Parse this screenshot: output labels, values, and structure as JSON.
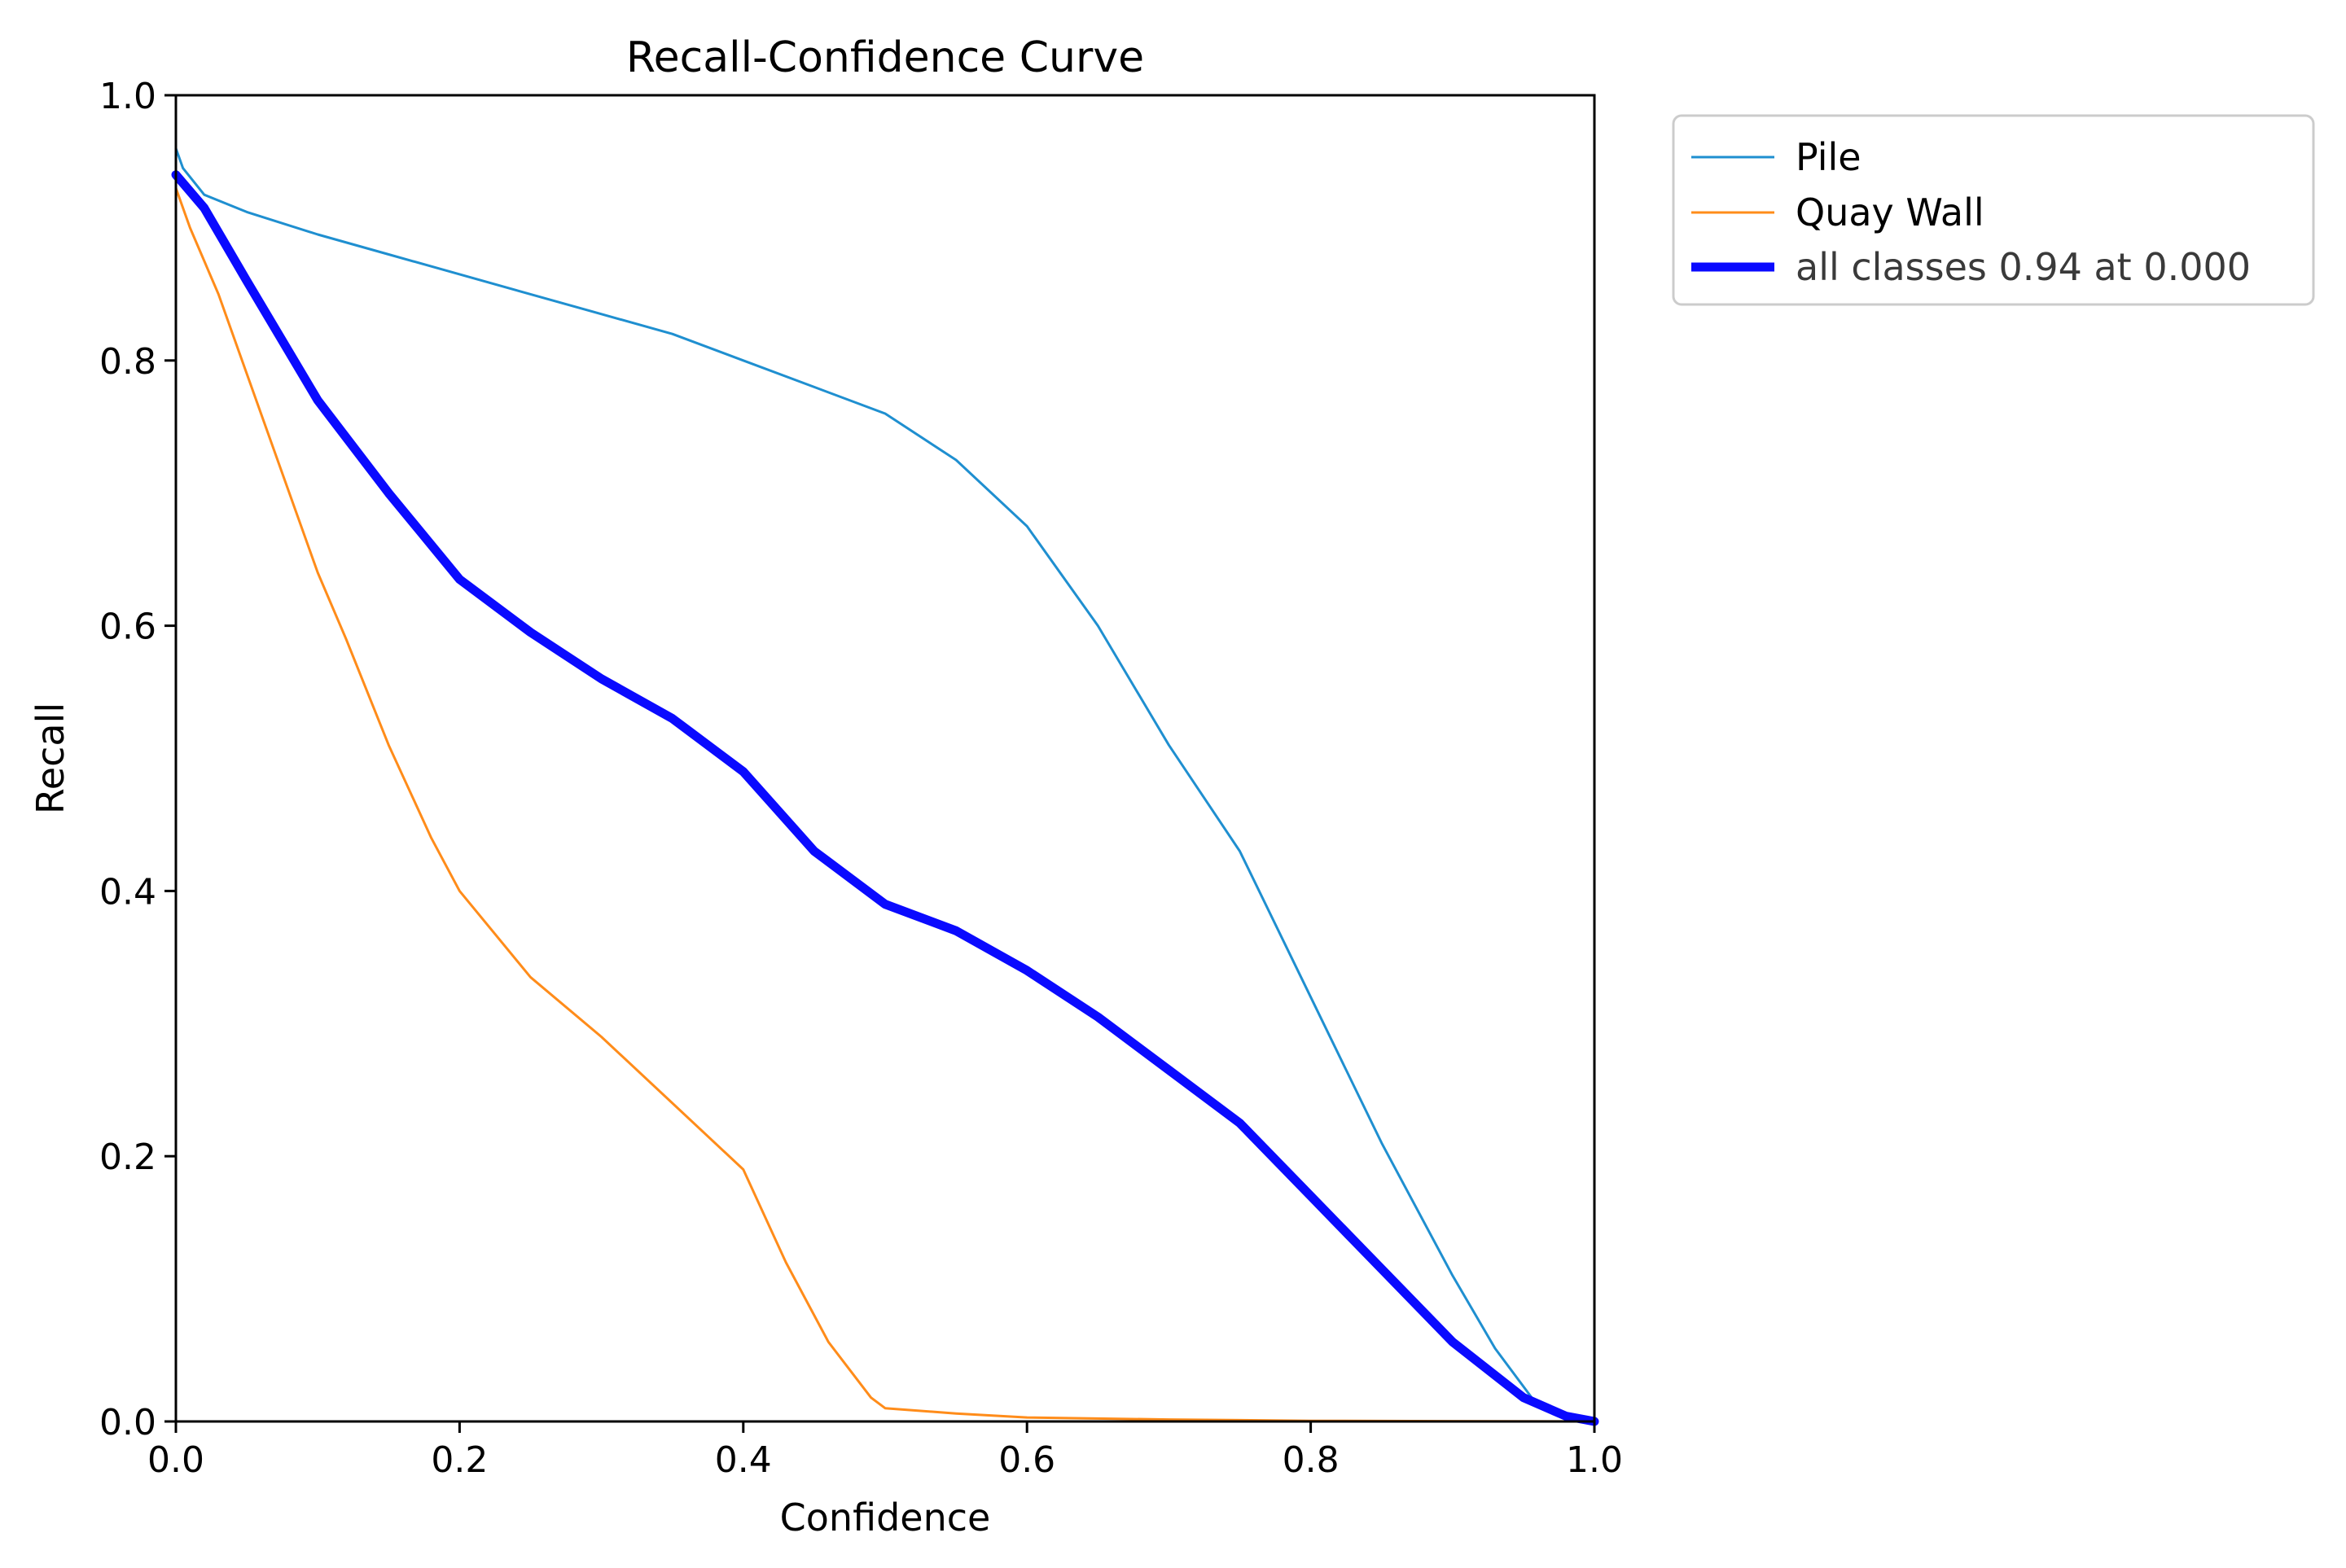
{
  "chart_data": {
    "type": "line",
    "title": "Recall-Confidence Curve",
    "xlabel": "Confidence",
    "ylabel": "Recall",
    "xlim": [
      0,
      1
    ],
    "ylim": [
      0,
      1
    ],
    "xticks": [
      "0.0",
      "0.2",
      "0.4",
      "0.6",
      "0.8",
      "1.0"
    ],
    "yticks": [
      "0.0",
      "0.2",
      "0.4",
      "0.6",
      "0.8",
      "1.0"
    ],
    "grid": false,
    "legend_position": "outside upper-right",
    "series": [
      {
        "name": "Pile",
        "color": "#1f8fd0",
        "x": [
          0.0,
          0.005,
          0.02,
          0.05,
          0.1,
          0.15,
          0.2,
          0.25,
          0.3,
          0.35,
          0.4,
          0.45,
          0.5,
          0.55,
          0.6,
          0.65,
          0.7,
          0.75,
          0.8,
          0.85,
          0.9,
          0.93,
          0.96,
          0.98,
          1.0
        ],
        "y": [
          0.96,
          0.945,
          0.925,
          0.912,
          0.895,
          0.88,
          0.865,
          0.85,
          0.835,
          0.82,
          0.8,
          0.78,
          0.76,
          0.725,
          0.675,
          0.6,
          0.51,
          0.43,
          0.32,
          0.21,
          0.11,
          0.055,
          0.012,
          0.004,
          0.0
        ]
      },
      {
        "name": "Quay Wall",
        "color": "#ff8c1a",
        "x": [
          0.0,
          0.01,
          0.03,
          0.05,
          0.07,
          0.1,
          0.12,
          0.15,
          0.18,
          0.2,
          0.25,
          0.3,
          0.35,
          0.4,
          0.43,
          0.46,
          0.49,
          0.5,
          0.55,
          0.6,
          0.7,
          0.8,
          1.0
        ],
        "y": [
          0.93,
          0.9,
          0.85,
          0.79,
          0.73,
          0.64,
          0.59,
          0.51,
          0.44,
          0.4,
          0.335,
          0.29,
          0.24,
          0.19,
          0.12,
          0.06,
          0.018,
          0.01,
          0.006,
          0.003,
          0.0015,
          0.0005,
          0.0
        ]
      },
      {
        "name": "all classes 0.94 at 0.000",
        "color": "#0a0aff",
        "x": [
          0.0,
          0.02,
          0.05,
          0.1,
          0.15,
          0.2,
          0.25,
          0.3,
          0.35,
          0.4,
          0.45,
          0.5,
          0.55,
          0.6,
          0.65,
          0.7,
          0.75,
          0.8,
          0.85,
          0.9,
          0.95,
          0.98,
          1.0
        ],
        "y": [
          0.94,
          0.915,
          0.86,
          0.77,
          0.7,
          0.635,
          0.595,
          0.56,
          0.53,
          0.49,
          0.43,
          0.39,
          0.37,
          0.34,
          0.305,
          0.265,
          0.225,
          0.17,
          0.115,
          0.06,
          0.018,
          0.004,
          0.0
        ]
      }
    ]
  }
}
